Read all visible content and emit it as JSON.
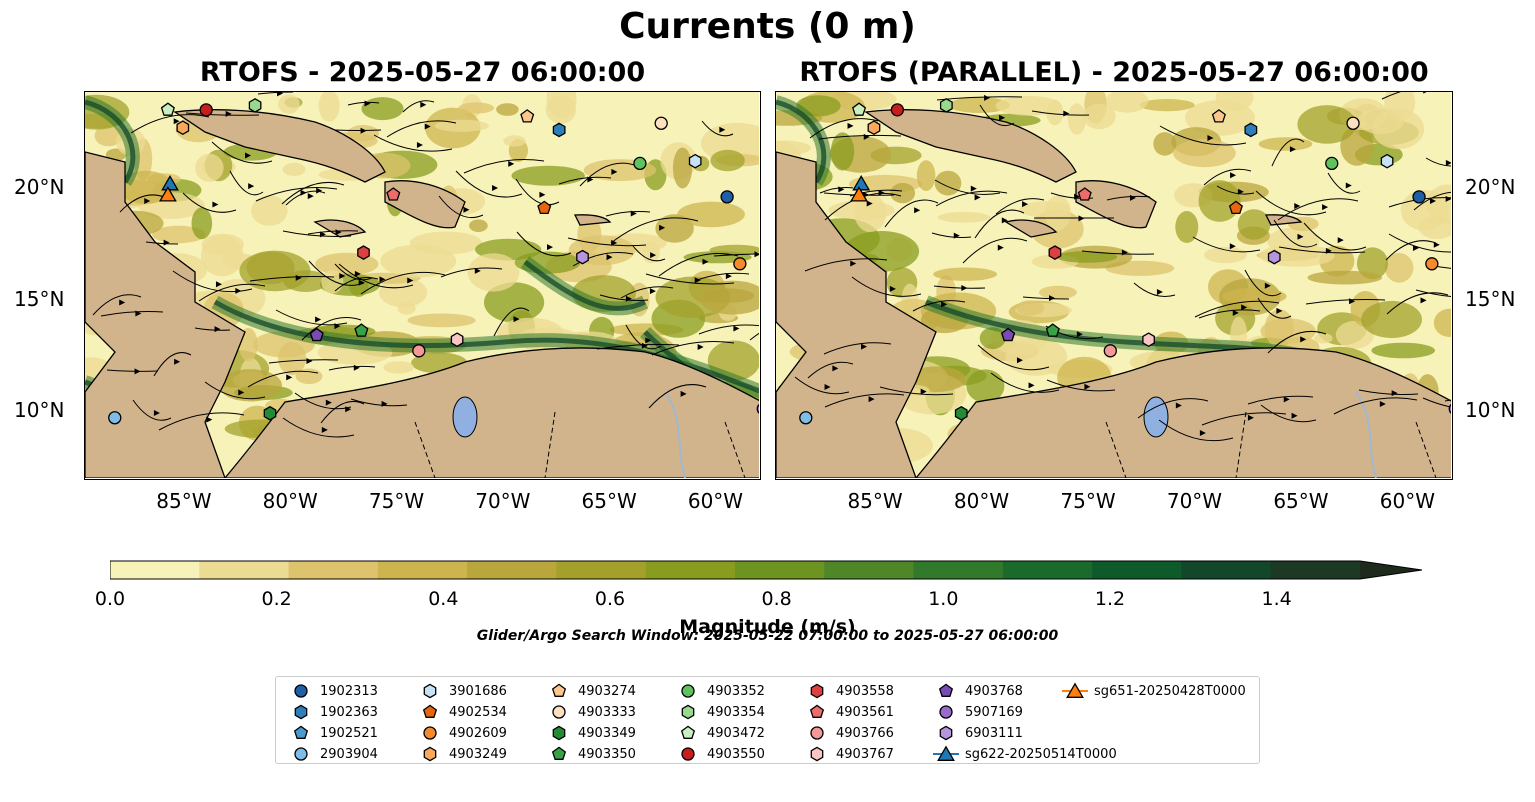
{
  "figure": {
    "suptitle": "Currents (0 m)",
    "panels": [
      {
        "title": "RTOFS - 2025-05-27 06:00:00"
      },
      {
        "title": "RTOFS (PARALLEL) - 2025-05-27 06:00:00"
      }
    ],
    "lon_ticks": [
      "85°W",
      "80°W",
      "75°W",
      "70°W",
      "65°W",
      "60°W"
    ],
    "lat_ticks": [
      "20°N",
      "15°N",
      "10°N"
    ],
    "search_window": "Glider/Argo Search Window: 2025-05-22 07:00:00 to 2025-05-27 06:00:00",
    "colors": {
      "land": "#d2b48c",
      "lake": "#8fb0e0",
      "river": "#a0b8d0"
    }
  },
  "colorbar": {
    "label": "Magnitude (m/s)",
    "ticks": [
      "0.0",
      "0.2",
      "0.4",
      "0.6",
      "0.8",
      "1.0",
      "1.2",
      "1.4"
    ],
    "min": 0.0,
    "max": 1.5,
    "step": 0.1,
    "extend": "max",
    "colors": [
      "#f7f2b8",
      "#ecdb93",
      "#ddc36e",
      "#cdb44f",
      "#b9a63d",
      "#a3a12c",
      "#8a9c1f",
      "#6d9320",
      "#4f8628",
      "#317a2b",
      "#1a6a2c",
      "#0f5a2a",
      "#12472a",
      "#1c3924",
      "#1e2a1c"
    ]
  },
  "legend": {
    "items": [
      {
        "label": "1902313",
        "marker": "circle",
        "color": "#1f5fa6"
      },
      {
        "label": "1902363",
        "marker": "hexagon",
        "color": "#2e7ebc"
      },
      {
        "label": "1902521",
        "marker": "pentagon",
        "color": "#4a9ad0"
      },
      {
        "label": "2903904",
        "marker": "circle",
        "color": "#7fbde6"
      },
      {
        "label": "3901686",
        "marker": "hexagon",
        "color": "#c7e2f5"
      },
      {
        "label": "4902534",
        "marker": "pentagon",
        "color": "#e8650f"
      },
      {
        "label": "4902609",
        "marker": "circle",
        "color": "#f4892e"
      },
      {
        "label": "4903249",
        "marker": "hexagon",
        "color": "#f9a95e"
      },
      {
        "label": "4903274",
        "marker": "pentagon",
        "color": "#fcc78f"
      },
      {
        "label": "4903333",
        "marker": "circle",
        "color": "#fde0c0"
      },
      {
        "label": "4903349",
        "marker": "hexagon",
        "color": "#238b35"
      },
      {
        "label": "4903350",
        "marker": "pentagon",
        "color": "#38a346"
      },
      {
        "label": "4903352",
        "marker": "circle",
        "color": "#5fc25f"
      },
      {
        "label": "4903354",
        "marker": "hexagon",
        "color": "#98d98e"
      },
      {
        "label": "4903472",
        "marker": "pentagon",
        "color": "#c9efc0"
      },
      {
        "label": "4903550",
        "marker": "circle",
        "color": "#c81d1d"
      },
      {
        "label": "4903558",
        "marker": "hexagon",
        "color": "#dd4040"
      },
      {
        "label": "4903561",
        "marker": "pentagon",
        "color": "#ec6b6b"
      },
      {
        "label": "4903766",
        "marker": "circle",
        "color": "#f49898"
      },
      {
        "label": "4903767",
        "marker": "hexagon",
        "color": "#f9c5c5"
      },
      {
        "label": "4903768",
        "marker": "pentagon",
        "color": "#7a4bb5"
      },
      {
        "label": "5907169",
        "marker": "circle",
        "color": "#9a6cc9"
      },
      {
        "label": "6903111",
        "marker": "hexagon",
        "color": "#b795dd"
      },
      {
        "label": "sg622-20250514T0000",
        "marker": "triangle",
        "color": "#1f77b4"
      },
      {
        "label": "sg651-20250428T0000",
        "marker": "triangle",
        "color": "#ff7f0e"
      }
    ]
  }
}
